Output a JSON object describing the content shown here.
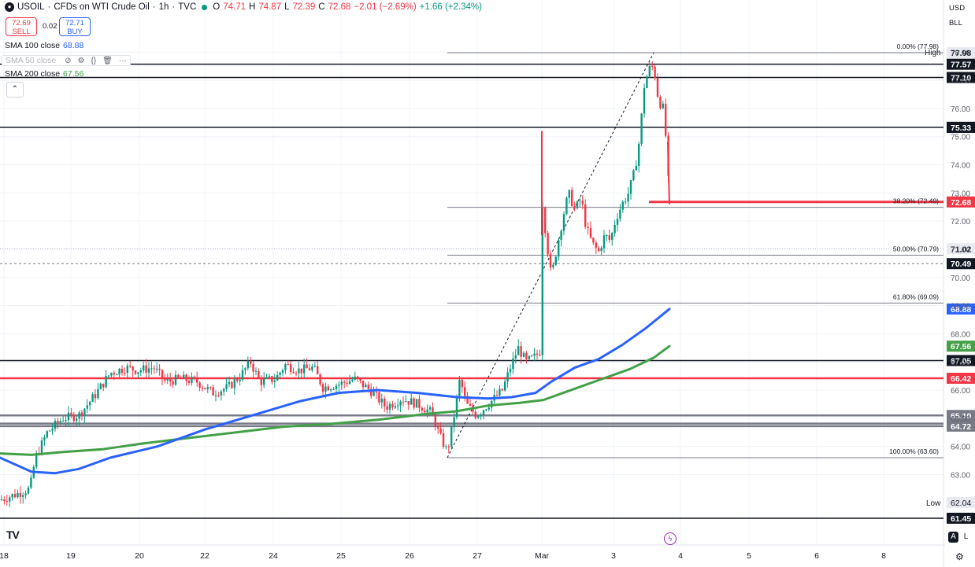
{
  "header": {
    "symbol_icon": "oil-drop-icon",
    "symbol": "USOIL",
    "description": "CFDs on WTI Crude Oil",
    "interval": "1h",
    "source": "TVC",
    "ohlc": {
      "open_label": "O",
      "open": "74.71",
      "high_label": "H",
      "high": "74.87",
      "low_label": "L",
      "low": "72.39",
      "close_label": "C",
      "close": "72.68"
    },
    "change": "−2.01 (−2.69%)",
    "extended_change": "+1.66 (+2.34%)",
    "sell_price": "72.69",
    "sell_label": "SELL",
    "spread": "0.02",
    "buy_price": "72.71",
    "buy_label": "BUY"
  },
  "indicators": [
    {
      "label": "SMA 100 close",
      "value": "68.88",
      "color": "#2962ff"
    },
    {
      "label": "SMA 50 close",
      "value": "",
      "color": "#b2b5be"
    },
    {
      "label": "SMA 200 close",
      "value": "67.56",
      "color": "#43a047"
    }
  ],
  "top_right": {
    "currency": "USD",
    "unit": "BLL"
  },
  "brand": "TV",
  "axis_buttons": {
    "auto": "A",
    "log": "L"
  },
  "fib_levels": [
    {
      "label": "0.00% (77.98)",
      "price": 77.98
    },
    {
      "label": "38.20% (72.49)",
      "price": 72.49
    },
    {
      "label": "50.00% (70.79)",
      "price": 70.79
    },
    {
      "label": "61.80% (69.09)",
      "price": 69.09
    },
    {
      "label": "100.00% (63.60)",
      "price": 63.6
    }
  ],
  "chart_data": {
    "type": "candlestick",
    "title": "USOIL · CFDs on WTI Crude Oil · 1h · TVC",
    "ylim": [
      61.3,
      78.8
    ],
    "y_ticks": [
      "78.00",
      "77.00",
      "76.00",
      "75.00",
      "74.00",
      "73.00",
      "72.00",
      "71.00",
      "70.00",
      "69.00",
      "68.00",
      "67.00",
      "66.00",
      "65.00",
      "64.00",
      "63.00"
    ],
    "x_ticks": [
      "18",
      "19",
      "20",
      "22",
      "24",
      "25",
      "26",
      "27",
      "Mar",
      "3",
      "4",
      "5",
      "6",
      "8"
    ],
    "horizontal_levels": [
      {
        "price": 77.57,
        "color": "#131722",
        "label": "77.57"
      },
      {
        "price": 77.1,
        "color": "#131722",
        "label": "77.10"
      },
      {
        "price": 75.33,
        "color": "#131722",
        "label": "75.33"
      },
      {
        "price": 67.05,
        "color": "#131722",
        "label": "67.05"
      },
      {
        "price": 66.42,
        "color": "#f23645",
        "label": "66.42"
      },
      {
        "price": 65.1,
        "color": "#787b86",
        "label": "65.10"
      },
      {
        "price": 64.81,
        "color": "#787b86",
        "label": "64.81"
      },
      {
        "price": 64.72,
        "color": "#787b86",
        "label": "64.72"
      },
      {
        "price": 61.45,
        "color": "#131722",
        "label": "61.45"
      }
    ],
    "current_price": {
      "price": 72.68,
      "label": "72.68",
      "color": "#f23645"
    },
    "high_marker": {
      "label": "High",
      "price": "77.98"
    },
    "low_marker": {
      "label": "Low",
      "price": "62.04"
    },
    "other_axis_labels": [
      {
        "price": 71.02,
        "label": "71.02"
      },
      {
        "price": 70.49,
        "label": "70.49"
      },
      {
        "price": 75.33,
        "label": "75.33"
      }
    ],
    "sma100": {
      "name": "SMA 100 close",
      "last": 68.88,
      "color": "#2962ff"
    },
    "sma200": {
      "name": "SMA 200 close",
      "last": 67.56,
      "color": "#43a047"
    },
    "price_path": [
      [
        0,
        62.1
      ],
      [
        20,
        62.3
      ],
      [
        38,
        62.5
      ],
      [
        45,
        63.6
      ],
      [
        60,
        64.5
      ],
      [
        80,
        65.0
      ],
      [
        100,
        65.1
      ],
      [
        120,
        65.8
      ],
      [
        140,
        66.6
      ],
      [
        160,
        66.8
      ],
      [
        175,
        66.7
      ],
      [
        195,
        66.8
      ],
      [
        210,
        66.3
      ],
      [
        230,
        66.4
      ],
      [
        250,
        66.3
      ],
      [
        270,
        65.9
      ],
      [
        290,
        66.1
      ],
      [
        305,
        66.5
      ],
      [
        318,
        67.0
      ],
      [
        330,
        66.3
      ],
      [
        350,
        66.4
      ],
      [
        362,
        66.9
      ],
      [
        380,
        66.7
      ],
      [
        398,
        66.8
      ],
      [
        410,
        66.1
      ],
      [
        430,
        66.2
      ],
      [
        450,
        66.4
      ],
      [
        470,
        66.0
      ],
      [
        490,
        65.4
      ],
      [
        510,
        65.7
      ],
      [
        530,
        65.5
      ],
      [
        548,
        65.2
      ],
      [
        558,
        64.4
      ],
      [
        568,
        63.8
      ],
      [
        576,
        65.0
      ],
      [
        584,
        66.4
      ],
      [
        592,
        65.5
      ],
      [
        605,
        65.1
      ],
      [
        620,
        65.5
      ],
      [
        638,
        66.0
      ],
      [
        648,
        66.8
      ],
      [
        658,
        67.5
      ],
      [
        668,
        67.0
      ],
      [
        680,
        67.2
      ],
      [
        686,
        67.4
      ],
      [
        688,
        72.8
      ],
      [
        694,
        71.3
      ],
      [
        700,
        70.0
      ],
      [
        708,
        71.2
      ],
      [
        716,
        72.3
      ],
      [
        722,
        73.0
      ],
      [
        730,
        72.4
      ],
      [
        738,
        72.8
      ],
      [
        744,
        71.8
      ],
      [
        752,
        71.2
      ],
      [
        760,
        70.9
      ],
      [
        768,
        71.5
      ],
      [
        775,
        71.3
      ],
      [
        782,
        72.1
      ],
      [
        790,
        72.6
      ],
      [
        798,
        73.0
      ],
      [
        806,
        73.8
      ],
      [
        812,
        74.9
      ],
      [
        818,
        76.8
      ],
      [
        824,
        77.4
      ],
      [
        830,
        77.5
      ],
      [
        836,
        76.3
      ],
      [
        842,
        76.0
      ],
      [
        846,
        74.8
      ],
      [
        850,
        72.7
      ]
    ],
    "sma100_path": [
      [
        0,
        63.6
      ],
      [
        40,
        63.1
      ],
      [
        70,
        63.05
      ],
      [
        100,
        63.2
      ],
      [
        140,
        63.6
      ],
      [
        200,
        64.0
      ],
      [
        260,
        64.6
      ],
      [
        320,
        65.1
      ],
      [
        380,
        65.6
      ],
      [
        430,
        65.9
      ],
      [
        480,
        66.0
      ],
      [
        530,
        65.9
      ],
      [
        580,
        65.75
      ],
      [
        620,
        65.7
      ],
      [
        650,
        65.75
      ],
      [
        680,
        65.9
      ],
      [
        700,
        66.3
      ],
      [
        730,
        66.8
      ],
      [
        760,
        67.1
      ],
      [
        790,
        67.6
      ],
      [
        820,
        68.2
      ],
      [
        850,
        68.88
      ]
    ],
    "sma200_path": [
      [
        0,
        63.75
      ],
      [
        40,
        63.7
      ],
      [
        80,
        63.8
      ],
      [
        130,
        63.9
      ],
      [
        180,
        64.1
      ],
      [
        240,
        64.3
      ],
      [
        300,
        64.5
      ],
      [
        360,
        64.7
      ],
      [
        420,
        64.8
      ],
      [
        480,
        64.95
      ],
      [
        540,
        65.15
      ],
      [
        580,
        65.25
      ],
      [
        620,
        65.45
      ],
      [
        660,
        65.55
      ],
      [
        690,
        65.65
      ],
      [
        720,
        65.95
      ],
      [
        760,
        66.35
      ],
      [
        800,
        66.75
      ],
      [
        830,
        67.15
      ],
      [
        850,
        67.56
      ]
    ],
    "fib_segment": {
      "x_start": 568,
      "x_end": 1198
    },
    "trend_line": {
      "from": [
        568,
        63.6
      ],
      "to": [
        830,
        77.98
      ]
    }
  }
}
